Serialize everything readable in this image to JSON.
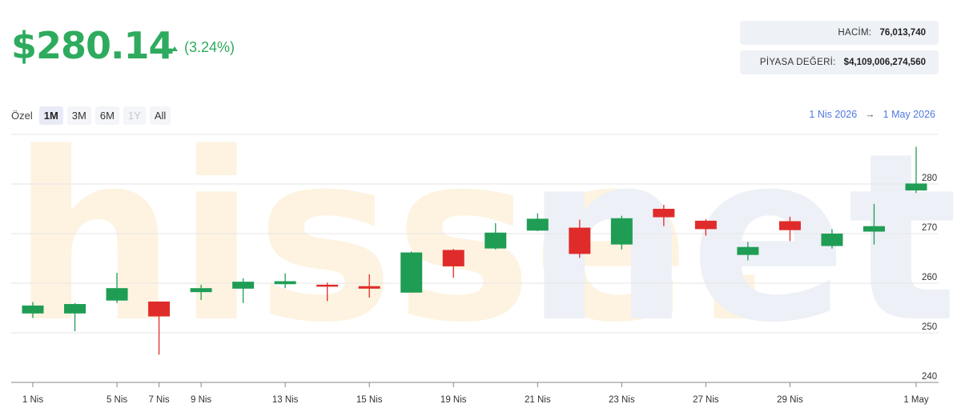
{
  "price": "$280.14",
  "change": "(3.24%)",
  "stats": {
    "volume_label": "HACİM:",
    "volume_value": "76,013,740",
    "mcap_label": "PİYASA DEĞERİ:",
    "mcap_value": "$4,109,006,274,560"
  },
  "range": {
    "label": "Özel",
    "buttons": [
      {
        "text": "1M",
        "state": "active"
      },
      {
        "text": "3M",
        "state": "normal"
      },
      {
        "text": "6M",
        "state": "normal"
      },
      {
        "text": "1Y",
        "state": "disabled"
      },
      {
        "text": "All",
        "state": "normal"
      }
    ],
    "from": "1 Nis 2026",
    "arrow": "→",
    "to": "1 May 2026"
  },
  "watermark": "hisse.net",
  "colors": {
    "up": "#1f9d55",
    "down": "#e02b2b",
    "accent": "#2eab5e",
    "link": "#4e78e0"
  },
  "chart_data": {
    "type": "candlestick",
    "ylim": [
      240,
      290
    ],
    "y_ticks": [
      240,
      250,
      260,
      270,
      280
    ],
    "x_tick_labels": [
      "1 Nis",
      "5 Nis",
      "7 Nis",
      "9 Nis",
      "13 Nis",
      "15 Nis",
      "19 Nis",
      "21 Nis",
      "23 Nis",
      "27 Nis",
      "29 Nis",
      "1 May"
    ],
    "candles": [
      {
        "open": 253.9,
        "high": 256.2,
        "low": 253.0,
        "close": 255.5
      },
      {
        "open": 253.9,
        "high": 256.0,
        "low": 250.3,
        "close": 255.8
      },
      {
        "open": 256.5,
        "high": 262.1,
        "low": 256.0,
        "close": 259.0
      },
      {
        "open": 256.3,
        "high": 256.3,
        "low": 245.6,
        "close": 253.3
      },
      {
        "open": 258.2,
        "high": 259.7,
        "low": 256.6,
        "close": 259.0
      },
      {
        "open": 258.9,
        "high": 261.0,
        "low": 256.0,
        "close": 260.3
      },
      {
        "open": 259.8,
        "high": 262.0,
        "low": 259.0,
        "close": 260.4
      },
      {
        "open": 259.7,
        "high": 260.1,
        "low": 256.4,
        "close": 259.3
      },
      {
        "open": 259.4,
        "high": 261.8,
        "low": 257.1,
        "close": 258.9
      },
      {
        "open": 258.1,
        "high": 266.4,
        "low": 258.1,
        "close": 266.2
      },
      {
        "open": 266.7,
        "high": 266.9,
        "low": 261.1,
        "close": 263.4
      },
      {
        "open": 267.0,
        "high": 272.1,
        "low": 266.8,
        "close": 270.2
      },
      {
        "open": 270.6,
        "high": 274.1,
        "low": 270.5,
        "close": 273.0
      },
      {
        "open": 271.2,
        "high": 272.8,
        "low": 265.1,
        "close": 265.9
      },
      {
        "open": 267.8,
        "high": 273.6,
        "low": 266.8,
        "close": 273.1
      },
      {
        "open": 275.0,
        "high": 275.8,
        "low": 271.5,
        "close": 273.3
      },
      {
        "open": 272.6,
        "high": 272.9,
        "low": 269.6,
        "close": 270.9
      },
      {
        "open": 265.7,
        "high": 268.3,
        "low": 264.6,
        "close": 267.3
      },
      {
        "open": 272.5,
        "high": 273.4,
        "low": 268.5,
        "close": 270.7
      },
      {
        "open": 267.5,
        "high": 270.9,
        "low": 267.0,
        "close": 270.0
      },
      {
        "open": 270.4,
        "high": 276.0,
        "low": 267.8,
        "close": 271.5
      },
      {
        "open": 278.7,
        "high": 287.5,
        "low": 278.2,
        "close": 280.1
      }
    ]
  }
}
